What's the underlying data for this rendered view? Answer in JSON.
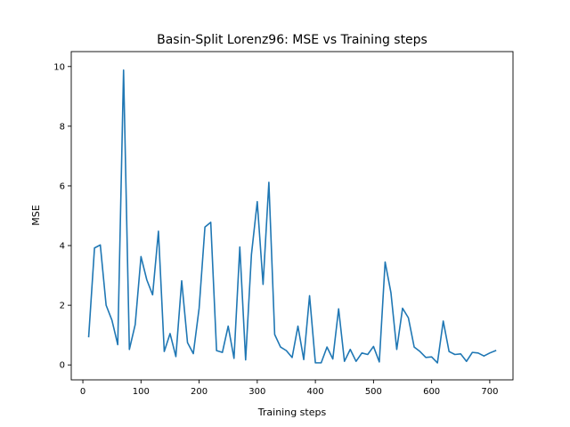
{
  "chart_data": {
    "type": "line",
    "title": "Basin-Split Lorenz96: MSE vs Training steps",
    "xlabel": "Training steps",
    "ylabel": "MSE",
    "xlim": [
      -20,
      740
    ],
    "ylim": [
      -0.5,
      10.5
    ],
    "xticks": [
      0,
      100,
      200,
      300,
      400,
      500,
      600,
      700
    ],
    "yticks": [
      0,
      2,
      4,
      6,
      8,
      10
    ],
    "grid": false,
    "legend": "none",
    "series": [
      {
        "color": "#1f77b4",
        "x": [
          10,
          20,
          30,
          40,
          50,
          60,
          70,
          80,
          90,
          100,
          110,
          120,
          130,
          140,
          150,
          160,
          170,
          180,
          190,
          200,
          210,
          220,
          230,
          240,
          250,
          260,
          270,
          280,
          290,
          300,
          310,
          320,
          330,
          340,
          350,
          360,
          370,
          380,
          390,
          400,
          410,
          420,
          430,
          440,
          450,
          460,
          470,
          480,
          490,
          500,
          510,
          520,
          530,
          540,
          550,
          560,
          570,
          580,
          590,
          600,
          610,
          620,
          630,
          640,
          650,
          660,
          670,
          680,
          690,
          700,
          710
        ],
        "y": [
          0.95,
          3.92,
          4.02,
          2.0,
          1.5,
          0.68,
          9.88,
          0.52,
          1.35,
          3.63,
          2.85,
          2.35,
          4.48,
          0.45,
          1.05,
          0.28,
          2.82,
          0.75,
          0.38,
          1.9,
          4.62,
          4.78,
          0.48,
          0.42,
          1.3,
          0.22,
          3.95,
          0.17,
          3.7,
          5.47,
          2.7,
          6.12,
          1.02,
          0.6,
          0.48,
          0.25,
          1.3,
          0.18,
          2.32,
          0.07,
          0.07,
          0.6,
          0.2,
          1.88,
          0.12,
          0.52,
          0.12,
          0.4,
          0.35,
          0.62,
          0.1,
          3.45,
          2.42,
          0.52,
          1.9,
          1.58,
          0.6,
          0.45,
          0.25,
          0.27,
          0.07,
          1.47,
          0.45,
          0.35,
          0.37,
          0.12,
          0.42,
          0.4,
          0.3,
          0.4,
          0.48
        ]
      }
    ]
  }
}
